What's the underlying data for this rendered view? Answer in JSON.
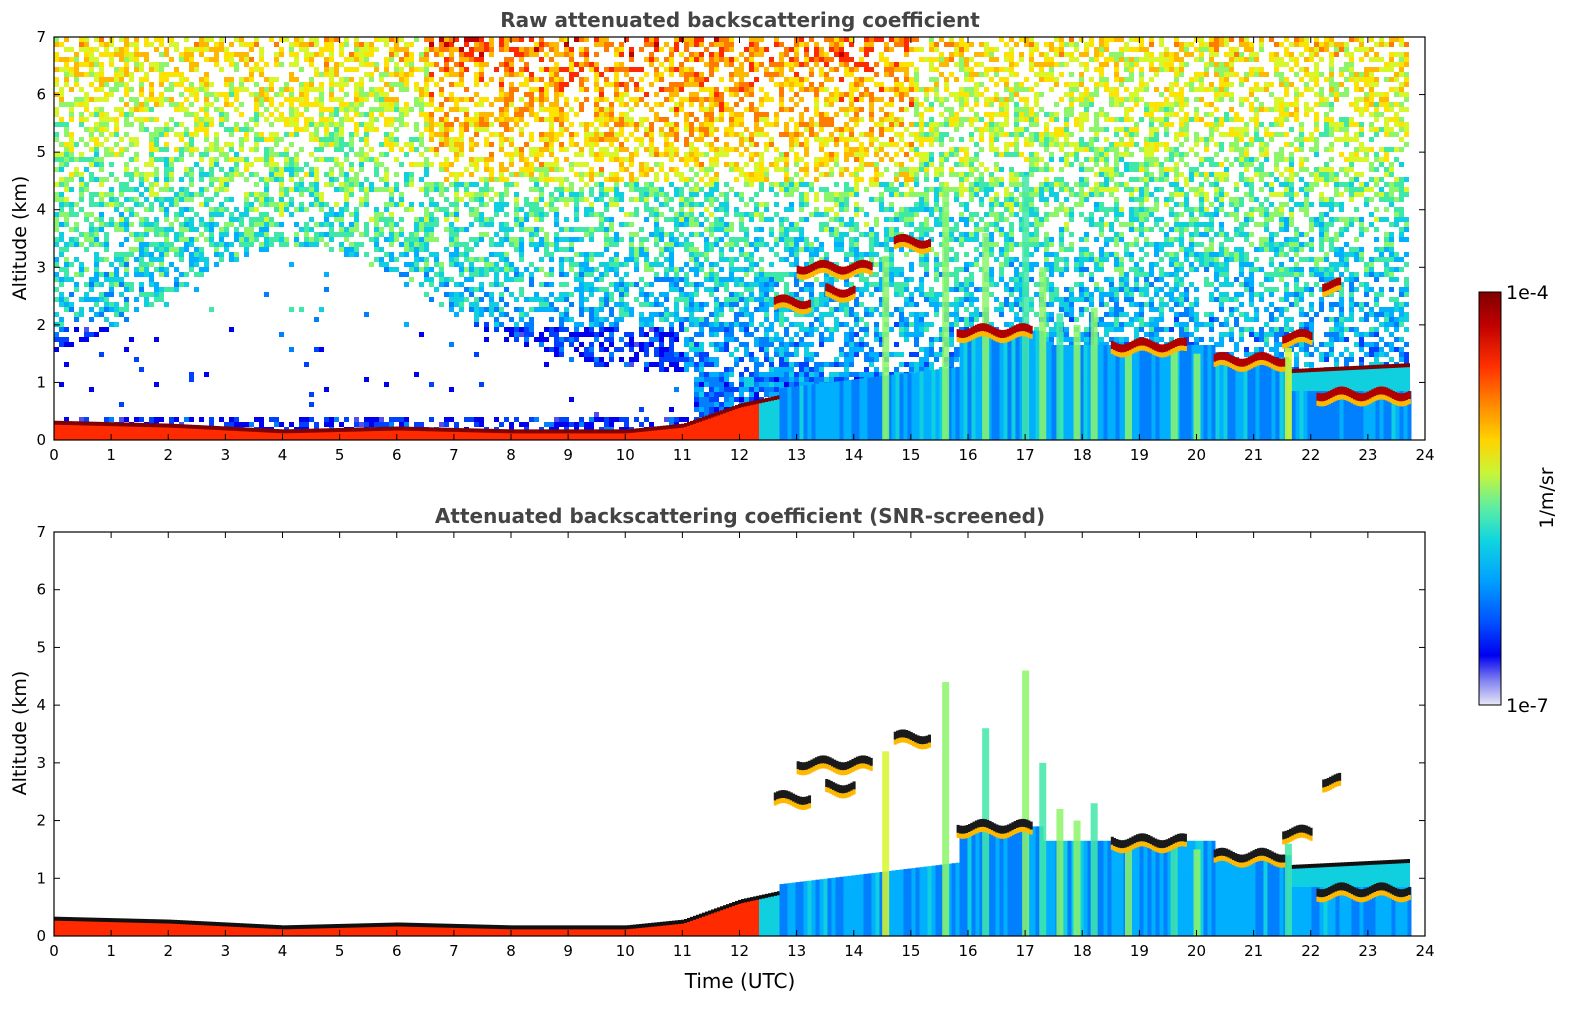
{
  "chart_data": [
    {
      "type": "heatmap",
      "title": "Raw attenuated backscattering coefficient",
      "xlabel": "",
      "ylabel": "Altitude (km)",
      "xlim": [
        0,
        24
      ],
      "ylim": [
        0,
        7
      ],
      "x_ticks": [
        "0",
        "1",
        "2",
        "3",
        "4",
        "5",
        "6",
        "7",
        "8",
        "9",
        "10",
        "11",
        "12",
        "13",
        "14",
        "15",
        "16",
        "17",
        "18",
        "19",
        "20",
        "21",
        "22",
        "23",
        "24"
      ],
      "y_ticks": [
        "0",
        "1",
        "2",
        "3",
        "4",
        "5",
        "6",
        "7"
      ],
      "data_end_hour": 23.7,
      "boundary_layer_top_km": [
        [
          0,
          0.3
        ],
        [
          2,
          0.25
        ],
        [
          4,
          0.15
        ],
        [
          6,
          0.2
        ],
        [
          8,
          0.15
        ],
        [
          10,
          0.15
        ],
        [
          11,
          0.25
        ],
        [
          12,
          0.6
        ],
        [
          12.7,
          0.75
        ]
      ],
      "cloud_layers_km": [
        {
          "start": 12.6,
          "end": 13.2,
          "altitude": 2.4
        },
        {
          "start": 13.0,
          "end": 14.3,
          "altitude": 3.0
        },
        {
          "start": 13.5,
          "end": 14.0,
          "altitude": 2.6
        },
        {
          "start": 14.7,
          "end": 15.3,
          "altitude": 3.45
        },
        {
          "start": 15.8,
          "end": 17.1,
          "altitude": 1.9
        },
        {
          "start": 18.5,
          "end": 19.8,
          "altitude": 1.65
        },
        {
          "start": 20.3,
          "end": 21.5,
          "altitude": 1.4
        },
        {
          "start": 21.5,
          "end": 22.0,
          "altitude": 1.8
        },
        {
          "start": 22.2,
          "end": 22.5,
          "altitude": 2.7
        },
        {
          "start": 22.1,
          "end": 23.7,
          "altitude": 0.8
        }
      ],
      "background_noise": true
    },
    {
      "type": "heatmap",
      "title": "Attenuated backscattering coefficient (SNR-screened)",
      "xlabel": "Time (UTC)",
      "ylabel": "Altitude (km)",
      "xlim": [
        0,
        24
      ],
      "ylim": [
        0,
        7
      ],
      "x_ticks": [
        "0",
        "1",
        "2",
        "3",
        "4",
        "5",
        "6",
        "7",
        "8",
        "9",
        "10",
        "11",
        "12",
        "13",
        "14",
        "15",
        "16",
        "17",
        "18",
        "19",
        "20",
        "21",
        "22",
        "23",
        "24"
      ],
      "y_ticks": [
        "0",
        "1",
        "2",
        "3",
        "4",
        "5",
        "6",
        "7"
      ],
      "data_end_hour": 23.7,
      "background_noise": false
    }
  ],
  "colorbar": {
    "label": "1/m/sr",
    "max_label": "1e-4",
    "min_label": "1e-7",
    "colors": [
      "#7f0000",
      "#c00000",
      "#ff2a00",
      "#ff7a00",
      "#ffb800",
      "#ffe300",
      "#d7f72a",
      "#8cf56a",
      "#40e8a8",
      "#10d0e0",
      "#00b0ff",
      "#0080ff",
      "#0040ff",
      "#0000f0",
      "#5050f0",
      "#a0a0f0",
      "#e0e0f8"
    ]
  }
}
